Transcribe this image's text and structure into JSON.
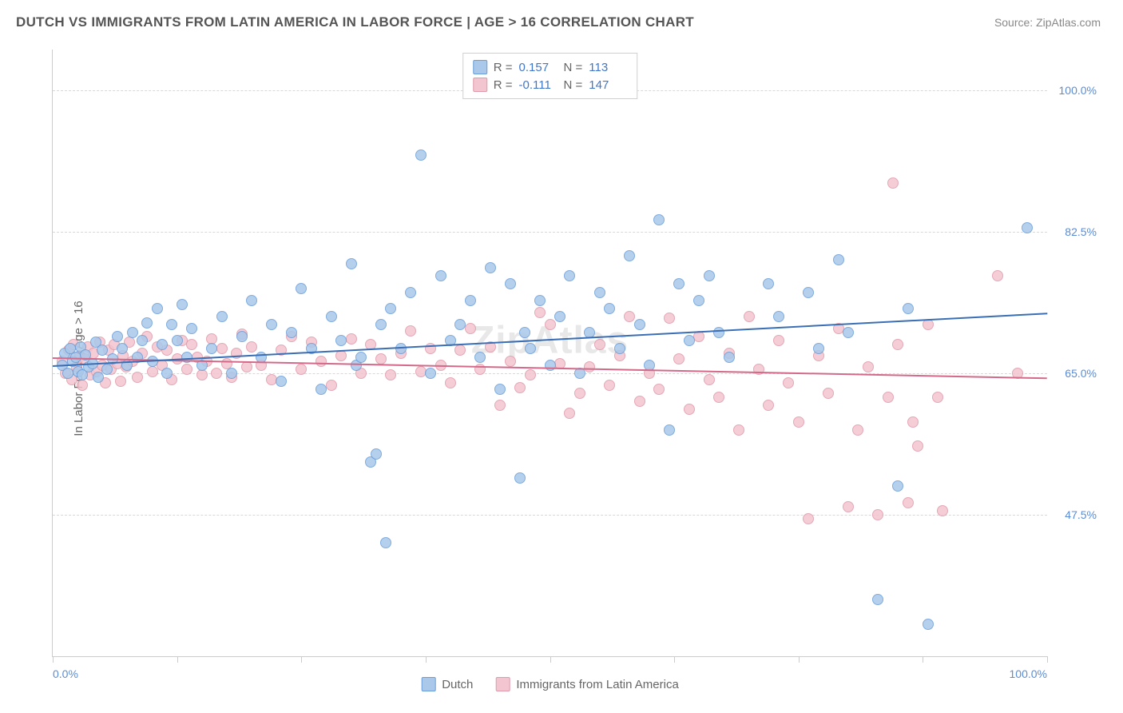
{
  "title": "DUTCH VS IMMIGRANTS FROM LATIN AMERICA IN LABOR FORCE | AGE > 16 CORRELATION CHART",
  "source": "Source: ZipAtlas.com",
  "watermark": "ZipAtlas",
  "y_axis_label": "In Labor Force | Age > 16",
  "chart": {
    "type": "scatter",
    "xlim": [
      0,
      100
    ],
    "ylim": [
      30,
      105
    ],
    "y_gridlines": [
      47.5,
      65.0,
      82.5,
      100.0
    ],
    "y_tick_labels": [
      "47.5%",
      "65.0%",
      "82.5%",
      "100.0%"
    ],
    "x_ticks": [
      0,
      12.5,
      25,
      37.5,
      50,
      62.5,
      75,
      87.5,
      100
    ],
    "x_tick_labels": {
      "0": "0.0%",
      "100": "100.0%"
    },
    "grid_color": "#d8d8d8",
    "axis_color": "#cccccc",
    "tick_label_color": "#5b8dd6",
    "marker_radius": 7,
    "marker_stroke_width": 1.5,
    "marker_fill_opacity": 0.35,
    "background_color": "#ffffff"
  },
  "series": {
    "dutch": {
      "label": "Dutch",
      "color_stroke": "#6a9ed8",
      "color_fill": "#a9c8ea",
      "R": "0.157",
      "N": "113",
      "trend": {
        "x1": 0,
        "y1": 66.0,
        "x2": 100,
        "y2": 72.5,
        "color": "#3a6fb5",
        "width": 2.5
      },
      "points": [
        [
          1,
          66
        ],
        [
          1.2,
          67.5
        ],
        [
          1.5,
          65
        ],
        [
          1.8,
          68
        ],
        [
          2,
          66.5
        ],
        [
          2.3,
          67
        ],
        [
          2.6,
          65.2
        ],
        [
          2.8,
          68.2
        ],
        [
          3,
          64.8
        ],
        [
          3.3,
          67.3
        ],
        [
          3.6,
          65.8
        ],
        [
          4,
          66.2
        ],
        [
          4.3,
          68.8
        ],
        [
          4.6,
          64.5
        ],
        [
          5,
          67.8
        ],
        [
          5.5,
          65.5
        ],
        [
          6,
          66.8
        ],
        [
          6.5,
          69.5
        ],
        [
          7,
          68
        ],
        [
          7.5,
          66
        ],
        [
          8,
          70
        ],
        [
          8.5,
          67
        ],
        [
          9,
          69
        ],
        [
          9.5,
          71.2
        ],
        [
          10,
          66.5
        ],
        [
          10.5,
          73
        ],
        [
          11,
          68.5
        ],
        [
          11.5,
          65
        ],
        [
          12,
          71
        ],
        [
          12.5,
          69
        ],
        [
          13,
          73.5
        ],
        [
          13.5,
          67
        ],
        [
          14,
          70.5
        ],
        [
          15,
          66
        ],
        [
          16,
          68
        ],
        [
          17,
          72
        ],
        [
          18,
          65
        ],
        [
          19,
          69.5
        ],
        [
          20,
          74
        ],
        [
          21,
          67
        ],
        [
          22,
          71
        ],
        [
          23,
          64
        ],
        [
          24,
          70
        ],
        [
          25,
          75.5
        ],
        [
          26,
          68
        ],
        [
          27,
          63
        ],
        [
          28,
          72
        ],
        [
          29,
          69
        ],
        [
          30,
          78.5
        ],
        [
          30.5,
          66
        ],
        [
          31,
          67
        ],
        [
          32,
          54
        ],
        [
          32.5,
          55
        ],
        [
          33,
          71
        ],
        [
          33.5,
          44
        ],
        [
          34,
          73
        ],
        [
          35,
          68
        ],
        [
          36,
          75
        ],
        [
          37,
          92
        ],
        [
          38,
          65
        ],
        [
          39,
          77
        ],
        [
          40,
          69
        ],
        [
          41,
          71
        ],
        [
          42,
          74
        ],
        [
          43,
          67
        ],
        [
          44,
          78
        ],
        [
          45,
          63
        ],
        [
          46,
          76
        ],
        [
          47,
          52
        ],
        [
          47.5,
          70
        ],
        [
          48,
          68
        ],
        [
          49,
          74
        ],
        [
          50,
          66
        ],
        [
          51,
          72
        ],
        [
          52,
          77
        ],
        [
          53,
          65
        ],
        [
          54,
          70
        ],
        [
          55,
          75
        ],
        [
          56,
          73
        ],
        [
          57,
          68
        ],
        [
          58,
          79.5
        ],
        [
          59,
          71
        ],
        [
          60,
          66
        ],
        [
          61,
          84
        ],
        [
          62,
          58
        ],
        [
          63,
          76
        ],
        [
          64,
          69
        ],
        [
          65,
          74
        ],
        [
          66,
          77
        ],
        [
          67,
          70
        ],
        [
          68,
          67
        ],
        [
          72,
          76
        ],
        [
          73,
          72
        ],
        [
          76,
          75
        ],
        [
          77,
          68
        ],
        [
          79,
          79
        ],
        [
          80,
          70
        ],
        [
          83,
          37
        ],
        [
          85,
          51
        ],
        [
          86,
          73
        ],
        [
          88,
          34
        ],
        [
          98,
          83
        ]
      ]
    },
    "latin": {
      "label": "Immigrants from Latin America",
      "color_stroke": "#e09aaa",
      "color_fill": "#f3c5d0",
      "R": "-0.111",
      "N": "147",
      "trend": {
        "x1": 0,
        "y1": 67.0,
        "x2": 100,
        "y2": 64.5,
        "color": "#d46a8a",
        "width": 2.5
      },
      "points": [
        [
          1,
          66.5
        ],
        [
          1.3,
          65
        ],
        [
          1.6,
          67.8
        ],
        [
          1.9,
          64.2
        ],
        [
          2.1,
          68.5
        ],
        [
          2.4,
          65.8
        ],
        [
          2.7,
          67.2
        ],
        [
          3,
          63.5
        ],
        [
          3.2,
          66.8
        ],
        [
          3.5,
          68.2
        ],
        [
          3.8,
          64.8
        ],
        [
          4.1,
          67.5
        ],
        [
          4.4,
          65.2
        ],
        [
          4.7,
          68.8
        ],
        [
          5,
          66
        ],
        [
          5.3,
          63.8
        ],
        [
          5.6,
          67.8
        ],
        [
          5.9,
          65.5
        ],
        [
          6.2,
          68.5
        ],
        [
          6.5,
          66.2
        ],
        [
          6.8,
          64
        ],
        [
          7.1,
          67.2
        ],
        [
          7.4,
          65.8
        ],
        [
          7.7,
          68.8
        ],
        [
          8,
          66.5
        ],
        [
          8.5,
          64.5
        ],
        [
          9,
          67.5
        ],
        [
          9.5,
          69.5
        ],
        [
          10,
          65.2
        ],
        [
          10.5,
          68.2
        ],
        [
          11,
          66
        ],
        [
          11.5,
          67.8
        ],
        [
          12,
          64.2
        ],
        [
          12.5,
          66.8
        ],
        [
          13,
          69
        ],
        [
          13.5,
          65.5
        ],
        [
          14,
          68.5
        ],
        [
          14.5,
          67
        ],
        [
          15,
          64.8
        ],
        [
          15.5,
          66.5
        ],
        [
          16,
          69.2
        ],
        [
          16.5,
          65
        ],
        [
          17,
          68
        ],
        [
          17.5,
          66.2
        ],
        [
          18,
          64.5
        ],
        [
          18.5,
          67.5
        ],
        [
          19,
          69.8
        ],
        [
          19.5,
          65.8
        ],
        [
          20,
          68.2
        ],
        [
          21,
          66
        ],
        [
          22,
          64.2
        ],
        [
          23,
          67.8
        ],
        [
          24,
          69.5
        ],
        [
          25,
          65.5
        ],
        [
          26,
          68.8
        ],
        [
          27,
          66.5
        ],
        [
          28,
          63.5
        ],
        [
          29,
          67.2
        ],
        [
          30,
          69.2
        ],
        [
          31,
          65
        ],
        [
          32,
          68.5
        ],
        [
          33,
          66.8
        ],
        [
          34,
          64.8
        ],
        [
          35,
          67.5
        ],
        [
          36,
          70.2
        ],
        [
          37,
          65.2
        ],
        [
          38,
          68
        ],
        [
          39,
          66
        ],
        [
          40,
          63.8
        ],
        [
          41,
          67.8
        ],
        [
          42,
          70.5
        ],
        [
          43,
          65.5
        ],
        [
          44,
          68.2
        ],
        [
          45,
          61
        ],
        [
          46,
          66.5
        ],
        [
          47,
          63.2
        ],
        [
          48,
          64.8
        ],
        [
          49,
          72.5
        ],
        [
          50,
          71
        ],
        [
          51,
          66.2
        ],
        [
          52,
          60
        ],
        [
          53,
          62.5
        ],
        [
          54,
          65.8
        ],
        [
          55,
          68.5
        ],
        [
          56,
          63.5
        ],
        [
          57,
          67.2
        ],
        [
          58,
          72
        ],
        [
          59,
          61.5
        ],
        [
          60,
          65
        ],
        [
          61,
          63
        ],
        [
          62,
          71.8
        ],
        [
          63,
          66.8
        ],
        [
          64,
          60.5
        ],
        [
          65,
          69.5
        ],
        [
          66,
          64.2
        ],
        [
          67,
          62
        ],
        [
          68,
          67.5
        ],
        [
          69,
          58
        ],
        [
          70,
          72
        ],
        [
          71,
          65.5
        ],
        [
          72,
          61
        ],
        [
          73,
          69
        ],
        [
          74,
          63.8
        ],
        [
          75,
          59
        ],
        [
          76,
          47
        ],
        [
          77,
          67.2
        ],
        [
          78,
          62.5
        ],
        [
          79,
          70.5
        ],
        [
          80,
          48.5
        ],
        [
          81,
          58
        ],
        [
          82,
          65.8
        ],
        [
          83,
          47.5
        ],
        [
          84,
          62
        ],
        [
          84.5,
          88.5
        ],
        [
          85,
          68.5
        ],
        [
          86,
          49
        ],
        [
          86.5,
          59
        ],
        [
          87,
          56
        ],
        [
          88,
          71
        ],
        [
          89,
          62
        ],
        [
          89.5,
          48
        ],
        [
          95,
          77
        ],
        [
          97,
          65
        ]
      ]
    }
  },
  "stats_box_labels": {
    "r": "R =",
    "n": "N ="
  },
  "legend": [
    "dutch",
    "latin"
  ]
}
